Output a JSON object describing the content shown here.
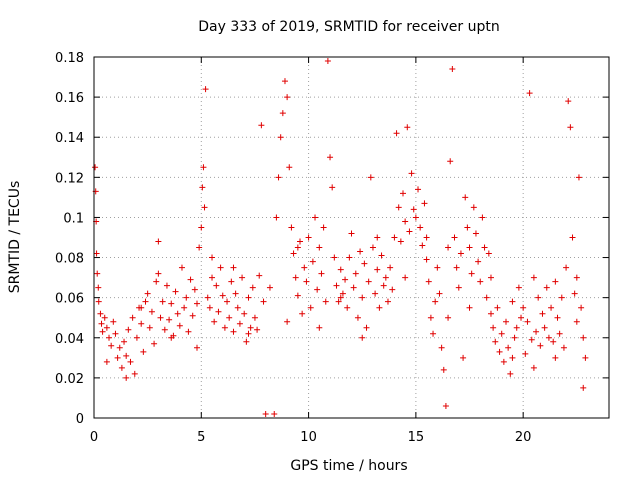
{
  "chart_data": {
    "type": "scatter",
    "title": "Day 333 of 2019, SRMTID for receiver uptn",
    "xlabel": "GPS time / hours",
    "ylabel": "SRMTID / TECUs",
    "xlim": [
      0,
      24
    ],
    "ylim": [
      0,
      0.18
    ],
    "xticks": [
      0,
      5,
      10,
      15,
      20
    ],
    "xtick_labels": [
      "0",
      "5",
      "10",
      "15",
      "20"
    ],
    "yticks": [
      0,
      0.02,
      0.04,
      0.06,
      0.08,
      0.1,
      0.12,
      0.14,
      0.16,
      0.18
    ],
    "ytick_labels": [
      "0",
      "0.02",
      "0.04",
      "0.06",
      "0.08",
      "0.1",
      "0.12",
      "0.14",
      "0.16",
      "0.18"
    ],
    "grid": true,
    "marker": "+",
    "color": "#e00000",
    "series": [
      {
        "name": "SRMTID",
        "points": [
          [
            0.05,
            0.125
          ],
          [
            0.08,
            0.113
          ],
          [
            0.1,
            0.098
          ],
          [
            0.12,
            0.082
          ],
          [
            0.15,
            0.072
          ],
          [
            0.2,
            0.065
          ],
          [
            0.22,
            0.058
          ],
          [
            0.3,
            0.052
          ],
          [
            0.35,
            0.047
          ],
          [
            0.4,
            0.043
          ],
          [
            0.5,
            0.05
          ],
          [
            0.6,
            0.045
          ],
          [
            0.7,
            0.04
          ],
          [
            0.8,
            0.036
          ],
          [
            0.9,
            0.048
          ],
          [
            1.0,
            0.042
          ],
          [
            1.1,
            0.03
          ],
          [
            1.2,
            0.035
          ],
          [
            1.3,
            0.025
          ],
          [
            1.4,
            0.038
          ],
          [
            1.5,
            0.031
          ],
          [
            1.6,
            0.044
          ],
          [
            1.7,
            0.028
          ],
          [
            1.8,
            0.05
          ],
          [
            1.9,
            0.022
          ],
          [
            2.0,
            0.04
          ],
          [
            2.1,
            0.055
          ],
          [
            2.2,
            0.047
          ],
          [
            2.3,
            0.033
          ],
          [
            2.4,
            0.058
          ],
          [
            2.5,
            0.062
          ],
          [
            2.6,
            0.045
          ],
          [
            2.7,
            0.053
          ],
          [
            2.8,
            0.037
          ],
          [
            2.9,
            0.068
          ],
          [
            3.0,
            0.072
          ],
          [
            3.1,
            0.05
          ],
          [
            3.2,
            0.058
          ],
          [
            3.3,
            0.044
          ],
          [
            3.4,
            0.066
          ],
          [
            3.5,
            0.049
          ],
          [
            3.6,
            0.057
          ],
          [
            3.7,
            0.041
          ],
          [
            3.8,
            0.063
          ],
          [
            3.9,
            0.052
          ],
          [
            4.0,
            0.046
          ],
          [
            4.1,
            0.075
          ],
          [
            4.2,
            0.055
          ],
          [
            4.3,
            0.06
          ],
          [
            4.4,
            0.043
          ],
          [
            4.5,
            0.069
          ],
          [
            4.6,
            0.051
          ],
          [
            4.7,
            0.064
          ],
          [
            4.8,
            0.057
          ],
          [
            4.9,
            0.085
          ],
          [
            5.0,
            0.095
          ],
          [
            5.05,
            0.115
          ],
          [
            5.1,
            0.125
          ],
          [
            5.15,
            0.105
          ],
          [
            5.2,
            0.164
          ],
          [
            5.3,
            0.06
          ],
          [
            5.4,
            0.055
          ],
          [
            5.5,
            0.07
          ],
          [
            5.6,
            0.048
          ],
          [
            5.7,
            0.066
          ],
          [
            5.8,
            0.053
          ],
          [
            5.9,
            0.075
          ],
          [
            6.0,
            0.061
          ],
          [
            6.1,
            0.045
          ],
          [
            6.2,
            0.058
          ],
          [
            6.3,
            0.05
          ],
          [
            6.4,
            0.068
          ],
          [
            6.5,
            0.043
          ],
          [
            6.6,
            0.062
          ],
          [
            6.7,
            0.055
          ],
          [
            6.8,
            0.047
          ],
          [
            6.9,
            0.07
          ],
          [
            7.0,
            0.052
          ],
          [
            7.1,
            0.038
          ],
          [
            7.2,
            0.06
          ],
          [
            7.3,
            0.045
          ],
          [
            7.4,
            0.065
          ],
          [
            7.5,
            0.05
          ],
          [
            7.6,
            0.044
          ],
          [
            7.7,
            0.071
          ],
          [
            7.8,
            0.146
          ],
          [
            7.9,
            0.058
          ],
          [
            8.0,
            0.002
          ],
          [
            8.4,
            0.002
          ],
          [
            8.5,
            0.1
          ],
          [
            8.6,
            0.12
          ],
          [
            8.7,
            0.14
          ],
          [
            8.8,
            0.152
          ],
          [
            8.9,
            0.168
          ],
          [
            9.0,
            0.16
          ],
          [
            9.1,
            0.125
          ],
          [
            9.2,
            0.095
          ],
          [
            9.3,
            0.082
          ],
          [
            9.4,
            0.07
          ],
          [
            9.5,
            0.061
          ],
          [
            9.6,
            0.088
          ],
          [
            9.7,
            0.052
          ],
          [
            9.8,
            0.075
          ],
          [
            9.9,
            0.068
          ],
          [
            10.0,
            0.09
          ],
          [
            10.1,
            0.055
          ],
          [
            10.2,
            0.078
          ],
          [
            10.3,
            0.1
          ],
          [
            10.4,
            0.064
          ],
          [
            10.5,
            0.085
          ],
          [
            10.6,
            0.072
          ],
          [
            10.7,
            0.095
          ],
          [
            10.8,
            0.058
          ],
          [
            10.9,
            0.178
          ],
          [
            11.0,
            0.13
          ],
          [
            11.1,
            0.115
          ],
          [
            11.2,
            0.08
          ],
          [
            11.3,
            0.066
          ],
          [
            11.4,
            0.058
          ],
          [
            11.5,
            0.074
          ],
          [
            11.6,
            0.062
          ],
          [
            11.7,
            0.069
          ],
          [
            11.8,
            0.055
          ],
          [
            11.9,
            0.08
          ],
          [
            12.0,
            0.092
          ],
          [
            12.1,
            0.065
          ],
          [
            12.2,
            0.072
          ],
          [
            12.3,
            0.05
          ],
          [
            12.4,
            0.083
          ],
          [
            12.5,
            0.06
          ],
          [
            12.6,
            0.077
          ],
          [
            12.7,
            0.045
          ],
          [
            12.8,
            0.068
          ],
          [
            12.9,
            0.12
          ],
          [
            13.0,
            0.085
          ],
          [
            13.1,
            0.062
          ],
          [
            13.2,
            0.074
          ],
          [
            13.3,
            0.055
          ],
          [
            13.4,
            0.081
          ],
          [
            13.5,
            0.066
          ],
          [
            13.6,
            0.07
          ],
          [
            13.7,
            0.058
          ],
          [
            13.8,
            0.075
          ],
          [
            13.9,
            0.064
          ],
          [
            14.0,
            0.09
          ],
          [
            14.1,
            0.142
          ],
          [
            14.2,
            0.105
          ],
          [
            14.3,
            0.088
          ],
          [
            14.4,
            0.112
          ],
          [
            14.5,
            0.098
          ],
          [
            14.6,
            0.145
          ],
          [
            14.7,
            0.093
          ],
          [
            14.8,
            0.122
          ],
          [
            14.9,
            0.104
          ],
          [
            15.0,
            0.1
          ],
          [
            15.1,
            0.114
          ],
          [
            15.2,
            0.095
          ],
          [
            15.3,
            0.086
          ],
          [
            15.4,
            0.107
          ],
          [
            15.5,
            0.079
          ],
          [
            15.6,
            0.068
          ],
          [
            15.7,
            0.05
          ],
          [
            15.8,
            0.042
          ],
          [
            15.9,
            0.058
          ],
          [
            16.0,
            0.075
          ],
          [
            16.1,
            0.062
          ],
          [
            16.2,
            0.035
          ],
          [
            16.3,
            0.024
          ],
          [
            16.4,
            0.006
          ],
          [
            16.5,
            0.05
          ],
          [
            16.6,
            0.128
          ],
          [
            16.7,
            0.174
          ],
          [
            16.8,
            0.09
          ],
          [
            16.9,
            0.075
          ],
          [
            17.0,
            0.065
          ],
          [
            17.1,
            0.082
          ],
          [
            17.2,
            0.03
          ],
          [
            17.3,
            0.11
          ],
          [
            17.4,
            0.095
          ],
          [
            17.5,
            0.085
          ],
          [
            17.6,
            0.072
          ],
          [
            17.7,
            0.105
          ],
          [
            17.8,
            0.092
          ],
          [
            17.9,
            0.078
          ],
          [
            18.0,
            0.068
          ],
          [
            18.1,
            0.1
          ],
          [
            18.2,
            0.085
          ],
          [
            18.3,
            0.06
          ],
          [
            18.4,
            0.082
          ],
          [
            18.5,
            0.052
          ],
          [
            18.6,
            0.045
          ],
          [
            18.7,
            0.038
          ],
          [
            18.8,
            0.055
          ],
          [
            18.9,
            0.033
          ],
          [
            19.0,
            0.042
          ],
          [
            19.1,
            0.028
          ],
          [
            19.2,
            0.048
          ],
          [
            19.3,
            0.035
          ],
          [
            19.4,
            0.022
          ],
          [
            19.5,
            0.058
          ],
          [
            19.6,
            0.04
          ],
          [
            19.7,
            0.045
          ],
          [
            19.8,
            0.065
          ],
          [
            19.9,
            0.05
          ],
          [
            20.0,
            0.055
          ],
          [
            20.1,
            0.032
          ],
          [
            20.2,
            0.048
          ],
          [
            20.3,
            0.162
          ],
          [
            20.4,
            0.039
          ],
          [
            20.5,
            0.07
          ],
          [
            20.6,
            0.043
          ],
          [
            20.7,
            0.06
          ],
          [
            20.8,
            0.036
          ],
          [
            20.9,
            0.052
          ],
          [
            21.0,
            0.045
          ],
          [
            21.1,
            0.065
          ],
          [
            21.2,
            0.04
          ],
          [
            21.3,
            0.055
          ],
          [
            21.4,
            0.038
          ],
          [
            21.5,
            0.068
          ],
          [
            21.6,
            0.05
          ],
          [
            21.7,
            0.042
          ],
          [
            21.8,
            0.06
          ],
          [
            21.9,
            0.035
          ],
          [
            22.0,
            0.075
          ],
          [
            22.1,
            0.158
          ],
          [
            22.2,
            0.145
          ],
          [
            22.3,
            0.09
          ],
          [
            22.4,
            0.062
          ],
          [
            22.5,
            0.048
          ],
          [
            22.6,
            0.12
          ],
          [
            22.7,
            0.055
          ],
          [
            22.8,
            0.04
          ],
          [
            22.9,
            0.03
          ],
          [
            0.6,
            0.028
          ],
          [
            1.5,
            0.02
          ],
          [
            2.2,
            0.055
          ],
          [
            3.6,
            0.04
          ],
          [
            4.8,
            0.035
          ],
          [
            6.5,
            0.075
          ],
          [
            7.2,
            0.042
          ],
          [
            8.2,
            0.065
          ],
          [
            9.5,
            0.085
          ],
          [
            10.5,
            0.045
          ],
          [
            11.5,
            0.06
          ],
          [
            12.5,
            0.04
          ],
          [
            13.2,
            0.09
          ],
          [
            14.5,
            0.07
          ],
          [
            15.5,
            0.09
          ],
          [
            16.5,
            0.085
          ],
          [
            17.5,
            0.055
          ],
          [
            18.5,
            0.07
          ],
          [
            19.5,
            0.03
          ],
          [
            20.5,
            0.025
          ],
          [
            21.5,
            0.03
          ],
          [
            22.5,
            0.07
          ],
          [
            22.8,
            0.015
          ],
          [
            3.0,
            0.088
          ],
          [
            5.5,
            0.08
          ],
          [
            9.0,
            0.048
          ]
        ]
      }
    ]
  }
}
